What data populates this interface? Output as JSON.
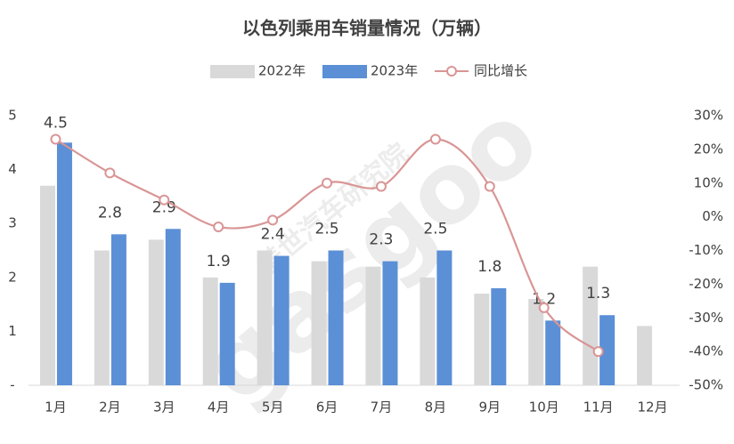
{
  "chart_data": {
    "type": "bar",
    "title": "以色列乘用车销量情况（万辆）",
    "watermark": [
      "盖世汽车研究院",
      "gasgoo"
    ],
    "categories": [
      "1月",
      "2月",
      "3月",
      "4月",
      "5月",
      "6月",
      "7月",
      "8月",
      "9月",
      "10月",
      "11月",
      "12月"
    ],
    "series": [
      {
        "name": "2022年",
        "color": "#d9d9d9",
        "type": "bar",
        "values": [
          3.7,
          2.5,
          2.7,
          2.0,
          2.5,
          2.3,
          2.2,
          2.0,
          1.7,
          1.6,
          2.2,
          1.1
        ]
      },
      {
        "name": "2023年",
        "color": "#5b8fd6",
        "type": "bar",
        "values": [
          4.5,
          2.8,
          2.9,
          1.9,
          2.4,
          2.5,
          2.3,
          2.5,
          1.8,
          1.2,
          1.3,
          null
        ]
      },
      {
        "name": "同比增长",
        "color": "#d99595",
        "type": "line",
        "axis": "y2",
        "values": [
          23,
          13,
          5,
          -3,
          -1,
          10,
          9,
          23,
          9,
          -27,
          -40,
          null
        ]
      }
    ],
    "ylim": [
      0,
      5
    ],
    "yticks": [
      {
        "value": 0,
        "label": "-"
      },
      1,
      2,
      3,
      4,
      5
    ],
    "y2lim": [
      -50,
      30
    ],
    "y2ticks": [
      {
        "value": -50,
        "label": "-50%"
      },
      {
        "value": -40,
        "label": "-40%"
      },
      {
        "value": -30,
        "label": "-30%"
      },
      {
        "value": -20,
        "label": "-20%"
      },
      {
        "value": -10,
        "label": "-10%"
      },
      {
        "value": 0,
        "label": "0%"
      },
      {
        "value": 10,
        "label": "10%"
      },
      {
        "value": 20,
        "label": "20%"
      },
      {
        "value": 30,
        "label": "30%"
      }
    ],
    "legend": "top"
  }
}
